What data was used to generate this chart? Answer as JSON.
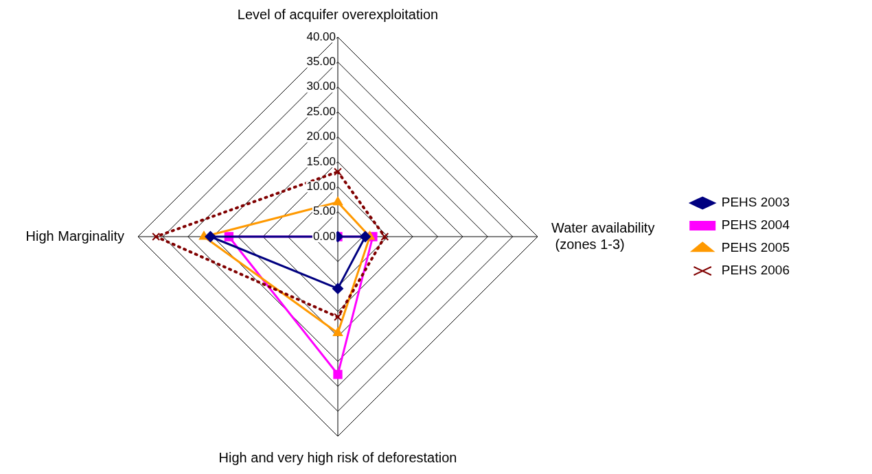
{
  "chart_data": {
    "type": "radar",
    "categories": [
      "Level of acquifer overexploitation",
      "Water availability\n (zones 1-3)",
      "High and very high risk of deforestation",
      "High Marginality"
    ],
    "series": [
      {
        "name": "PEHS 2003",
        "color": "#000080",
        "values": [
          0,
          5.5,
          10.4,
          25.5
        ],
        "marker": "diamond",
        "line_style": "solid"
      },
      {
        "name": "PEHS 2004",
        "color": "#ff00ff",
        "values": [
          0,
          7.0,
          27.6,
          21.8
        ],
        "marker": "square",
        "line_style": "solid"
      },
      {
        "name": "PEHS 2005",
        "color": "#ff9900",
        "values": [
          6.9,
          6.4,
          19.3,
          26.8
        ],
        "marker": "triangle",
        "line_style": "solid"
      },
      {
        "name": "PEHS 2006",
        "color": "#800000",
        "values": [
          13.0,
          9.4,
          16.1,
          36.4
        ],
        "marker": "cross",
        "line_style": "dotted"
      }
    ],
    "ylim": [
      0,
      40
    ],
    "yticks": [
      {
        "value": 0,
        "label": "0.00"
      },
      {
        "value": 5,
        "label": "5.00"
      },
      {
        "value": 10,
        "label": "10.00"
      },
      {
        "value": 15,
        "label": "15.00"
      },
      {
        "value": 20,
        "label": "20.00"
      },
      {
        "value": 25,
        "label": "25.00"
      },
      {
        "value": 30,
        "label": "30.00"
      },
      {
        "value": 35,
        "label": "35.00"
      },
      {
        "value": 40,
        "label": "40.00"
      }
    ],
    "grid": true,
    "legend": "right"
  }
}
